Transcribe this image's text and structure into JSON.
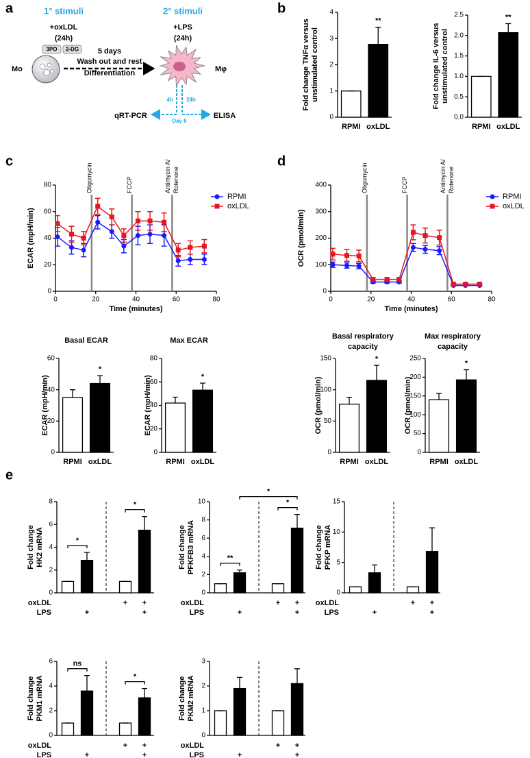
{
  "panel_labels": [
    "a",
    "b",
    "c",
    "d",
    "e"
  ],
  "schematic": {
    "primary": {
      "title": "1° stimuli",
      "treatment": "+oxLDL",
      "duration": "(24h)",
      "inhibitors": [
        "3PO",
        "2-DG"
      ],
      "cell": "Mo"
    },
    "transition": [
      "5 days",
      "Wash out and rest",
      "Differentiation"
    ],
    "secondary": {
      "title": "2° stimuli",
      "treatment": "+LPS",
      "duration": "(24h)",
      "cell": "Mφ"
    },
    "readout": {
      "times": [
        "4h",
        "24h"
      ],
      "day": "Day 6",
      "left": "qRT-PCR",
      "right": "ELISA"
    }
  },
  "chart_data": [
    {
      "type": "bar",
      "y_label": [
        "Fold change TNFα versus",
        "unstimulated control"
      ],
      "categories": [
        "RPMI",
        "oxLDL"
      ],
      "values": [
        1,
        2.78
      ],
      "errors": [
        0,
        0.65
      ],
      "significance": [
        null,
        "**"
      ],
      "bar_colors": [
        "#ffffff",
        "#000000"
      ],
      "ylim": [
        0,
        4
      ],
      "yticks": [
        0,
        1,
        2,
        3,
        4
      ]
    },
    {
      "type": "bar",
      "y_label": [
        "Fold change IL-6 versus",
        "unstimulated control"
      ],
      "categories": [
        "RPMI",
        "oxLDL"
      ],
      "values": [
        1,
        2.07
      ],
      "errors": [
        0,
        0.22
      ],
      "significance": [
        null,
        "**"
      ],
      "bar_colors": [
        "#ffffff",
        "#000000"
      ],
      "ylim": [
        0,
        2.5
      ],
      "yticks": [
        {
          "value": 0,
          "label": "0.0"
        },
        0.5,
        {
          "value": 1,
          "label": "1.0"
        },
        1.5,
        {
          "value": 2,
          "label": "2.0"
        },
        2.5
      ]
    },
    {
      "type": "line",
      "y_label": "ECAR (mpH/min)",
      "x_label": "Time (minutes)",
      "x": [
        1,
        8,
        14,
        21,
        28,
        34,
        41,
        47,
        54,
        61,
        67,
        74
      ],
      "series": [
        {
          "name": "RPMI",
          "color": "#1a1aff",
          "marker": "circle",
          "values": [
            41,
            33,
            31,
            52,
            45,
            34,
            42,
            43,
            42,
            23,
            24,
            24
          ],
          "errors": [
            7,
            5,
            5,
            5,
            5,
            5,
            7,
            7,
            8,
            4,
            4,
            4
          ]
        },
        {
          "name": "oxLDL",
          "color": "#e8141e",
          "marker": "square",
          "values": [
            51,
            43,
            40,
            64,
            56,
            42,
            53,
            53,
            52,
            31,
            33,
            34
          ],
          "errors": [
            6,
            6,
            5,
            6,
            6,
            5,
            7,
            7,
            7,
            5,
            5,
            5
          ]
        }
      ],
      "events": [
        {
          "x": 18,
          "label": "Oligomycin"
        },
        {
          "x": 38,
          "label": "FCCP"
        },
        {
          "x": 58,
          "label": [
            "Antimycin A/",
            "Rotenone"
          ]
        }
      ],
      "xlim": [
        0,
        80
      ],
      "xticks": [
        0,
        20,
        40,
        60,
        80
      ],
      "ylim": [
        0,
        80
      ],
      "yticks": [
        0,
        20,
        40,
        60,
        80
      ],
      "legend": "right"
    },
    {
      "type": "line",
      "y_label": "OCR (pmol/min)",
      "x_label": "Time (minutes)",
      "x": [
        1,
        8,
        14,
        21,
        28,
        34,
        41,
        47,
        54,
        61,
        67,
        74
      ],
      "series": [
        {
          "name": "RPMI",
          "color": "#1a1aff",
          "marker": "circle",
          "values": [
            100,
            97,
            95,
            35,
            35,
            35,
            165,
            158,
            153,
            22,
            22,
            22
          ],
          "errors": [
            10,
            10,
            10,
            4,
            4,
            4,
            15,
            15,
            15,
            2,
            2,
            2
          ]
        },
        {
          "name": "oxLDL",
          "color": "#e8141e",
          "marker": "square",
          "values": [
            140,
            135,
            133,
            45,
            45,
            45,
            222,
            210,
            202,
            27,
            27,
            27
          ],
          "errors": [
            22,
            22,
            22,
            6,
            6,
            6,
            28,
            28,
            28,
            3,
            3,
            3
          ]
        }
      ],
      "events": [
        {
          "x": 18,
          "label": "Oligomycin"
        },
        {
          "x": 38,
          "label": "FCCP"
        },
        {
          "x": 58,
          "label": [
            "Antimycin A/",
            "Rotenone"
          ]
        }
      ],
      "xlim": [
        0,
        80
      ],
      "xticks": [
        0,
        20,
        40,
        60,
        80
      ],
      "ylim": [
        0,
        400
      ],
      "yticks": [
        0,
        100,
        200,
        300,
        400
      ],
      "legend": "right"
    },
    {
      "type": "bar",
      "title": [
        "Basal ECAR"
      ],
      "y_label": "ECAR (mpH/min)",
      "categories": [
        "RPMI",
        "oxLDL"
      ],
      "values": [
        35,
        44
      ],
      "errors": [
        5,
        5
      ],
      "significance": [
        null,
        "*"
      ],
      "bar_colors": [
        "#ffffff",
        "#000000"
      ],
      "ylim": [
        0,
        60
      ],
      "yticks": [
        0,
        20,
        40,
        60
      ]
    },
    {
      "type": "bar",
      "title": [
        "Max ECAR"
      ],
      "y_label": "ECAR (mpH/min)",
      "categories": [
        "RPMI",
        "oxLDL"
      ],
      "values": [
        42,
        53
      ],
      "errors": [
        5,
        6
      ],
      "significance": [
        null,
        "*"
      ],
      "bar_colors": [
        "#ffffff",
        "#000000"
      ],
      "ylim": [
        0,
        80
      ],
      "yticks": [
        0,
        20,
        40,
        60,
        80
      ]
    },
    {
      "type": "bar",
      "title": [
        "Basal respiratory",
        "capacity"
      ],
      "y_label": "OCR (pmol/min)",
      "categories": [
        "RPMI",
        "oxLDL"
      ],
      "values": [
        77,
        115
      ],
      "errors": [
        11,
        24
      ],
      "significance": [
        null,
        "*"
      ],
      "bar_colors": [
        "#ffffff",
        "#000000"
      ],
      "ylim": [
        0,
        150
      ],
      "yticks": [
        0,
        50,
        100,
        150
      ]
    },
    {
      "type": "bar",
      "title": [
        "Max respiratory",
        "capacity"
      ],
      "y_label": "OCR (pmol/min)",
      "categories": [
        "RPMI",
        "oxLDL"
      ],
      "values": [
        140,
        193
      ],
      "errors": [
        17,
        27
      ],
      "significance": [
        null,
        "*"
      ],
      "bar_colors": [
        "#ffffff",
        "#000000"
      ],
      "ylim": [
        0,
        250
      ],
      "yticks": [
        0,
        50,
        100,
        150,
        200,
        250
      ]
    },
    {
      "type": "bar",
      "y_label": [
        "Fold change",
        "HK2 mRNA"
      ],
      "values": [
        1,
        2.85,
        1,
        5.5
      ],
      "errors": [
        0,
        0.7,
        0,
        1.2
      ],
      "bar_colors": [
        "#ffffff",
        "#000000",
        "#ffffff",
        "#000000"
      ],
      "conditions": [
        {
          "name": "oxLDL",
          "marks": [
            null,
            null,
            "+",
            "+"
          ]
        },
        {
          "name": "LPS",
          "marks": [
            null,
            "+",
            null,
            "+"
          ]
        }
      ],
      "comparisons": [
        {
          "from": 0,
          "to": 1,
          "label": "*"
        },
        {
          "from": 2,
          "to": 3,
          "label": "*"
        }
      ],
      "ylim": [
        0,
        8
      ],
      "yticks": [
        0,
        2,
        4,
        6,
        8
      ]
    },
    {
      "type": "bar",
      "y_label": [
        "Fold change",
        "PFKFB3 mRNA"
      ],
      "values": [
        1,
        2.2,
        1,
        7.1
      ],
      "errors": [
        0,
        0.3,
        0,
        1.5
      ],
      "bar_colors": [
        "#ffffff",
        "#000000",
        "#ffffff",
        "#000000"
      ],
      "conditions": [
        {
          "name": "oxLDL",
          "marks": [
            null,
            null,
            "+",
            "+"
          ]
        },
        {
          "name": "LPS",
          "marks": [
            null,
            "+",
            null,
            "+"
          ]
        }
      ],
      "comparisons": [
        {
          "from": 0,
          "to": 1,
          "label": "**"
        },
        {
          "from": 2,
          "to": 3,
          "label": "*"
        },
        {
          "from": 1,
          "to": 3,
          "label": "*"
        }
      ],
      "ylim": [
        0,
        10
      ],
      "yticks": [
        0,
        2,
        4,
        6,
        8,
        10
      ]
    },
    {
      "type": "bar",
      "y_label": [
        "Fold change",
        "PFKP mRNA"
      ],
      "values": [
        1,
        3.3,
        1,
        6.8
      ],
      "errors": [
        0,
        1.3,
        0,
        3.9
      ],
      "bar_colors": [
        "#ffffff",
        "#000000",
        "#ffffff",
        "#000000"
      ],
      "conditions": [
        {
          "name": "oxLDL",
          "marks": [
            null,
            null,
            "+",
            "+"
          ]
        },
        {
          "name": "LPS",
          "marks": [
            null,
            "+",
            null,
            "+"
          ]
        }
      ],
      "ylim": [
        0,
        15
      ],
      "yticks": [
        0,
        5,
        10,
        15
      ]
    },
    {
      "type": "bar",
      "y_label": [
        "Fold change",
        "PKM1 mRNA"
      ],
      "values": [
        1,
        3.6,
        1,
        3.05
      ],
      "errors": [
        0,
        1.25,
        0,
        0.75
      ],
      "bar_colors": [
        "#ffffff",
        "#000000",
        "#ffffff",
        "#000000"
      ],
      "conditions": [
        {
          "name": "oxLDL",
          "marks": [
            null,
            null,
            "+",
            "+"
          ]
        },
        {
          "name": "LPS",
          "marks": [
            null,
            "+",
            null,
            "+"
          ]
        }
      ],
      "comparisons": [
        {
          "from": 0,
          "to": 1,
          "label": "ns"
        },
        {
          "from": 2,
          "to": 3,
          "label": "*"
        }
      ],
      "ylim": [
        0,
        6
      ],
      "yticks": [
        0,
        2,
        4,
        6
      ]
    },
    {
      "type": "bar",
      "y_label": [
        "Fold change",
        "PKM2 mRNA"
      ],
      "values": [
        1,
        1.9,
        1,
        2.1
      ],
      "errors": [
        0,
        0.45,
        0,
        0.6
      ],
      "bar_colors": [
        "#ffffff",
        "#000000",
        "#ffffff",
        "#000000"
      ],
      "conditions": [
        {
          "name": "oxLDL",
          "marks": [
            null,
            null,
            "+",
            "+"
          ]
        },
        {
          "name": "LPS",
          "marks": [
            null,
            "+",
            null,
            "+"
          ]
        }
      ],
      "ylim": [
        0,
        3
      ],
      "yticks": [
        0,
        1,
        2,
        3
      ]
    }
  ]
}
